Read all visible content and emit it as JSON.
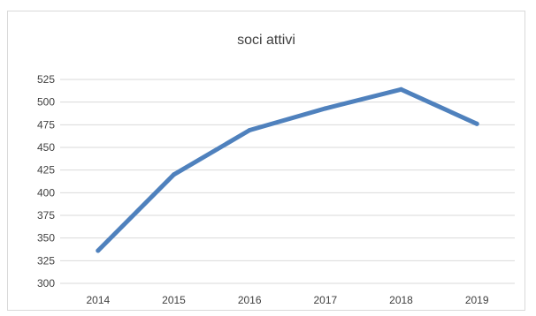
{
  "chart_data": {
    "type": "line",
    "title": "soci attivi",
    "xlabel": "",
    "ylabel": "",
    "categories": [
      "2014",
      "2015",
      "2016",
      "2017",
      "2018",
      "2019"
    ],
    "values": [
      336,
      420,
      469,
      493,
      514,
      476
    ],
    "ylim": [
      300,
      525
    ],
    "yticks": [
      300,
      325,
      350,
      375,
      400,
      425,
      450,
      475,
      500,
      525
    ],
    "grid": true,
    "legend": "none",
    "line_color": "#4f81bd",
    "grid_color": "#d9d9d9",
    "text_color": "#404040"
  }
}
